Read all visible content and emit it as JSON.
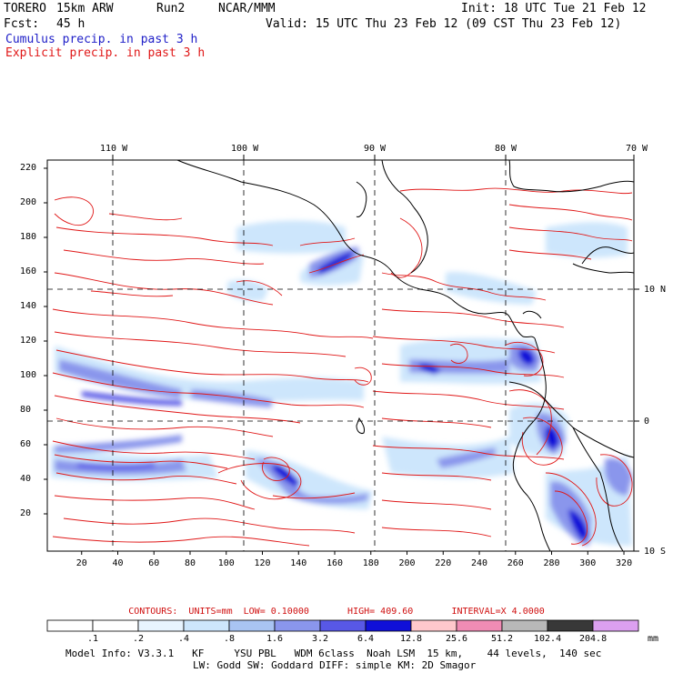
{
  "header": {
    "model": "TORERO",
    "resolution": "15km ARW",
    "run": "Run2",
    "org": "NCAR/MMM",
    "init": "Init: 18 UTC Tue 21 Feb 12",
    "fcst_label": "Fcst:",
    "fcst_value": "45 h",
    "valid": "Valid: 15 UTC Thu 23 Feb 12 (09 CST Thu 23 Feb 12)",
    "field1": "Cumulus precip. in past 3 h",
    "field2": "Explicit precip. in past 3 h"
  },
  "map": {
    "lon_labels": [
      "110 W",
      "100 W",
      "90 W",
      "80 W",
      "70 W"
    ],
    "lat_labels_right": [
      "10 N",
      "0",
      "10 S"
    ],
    "y_ticks": [
      "220",
      "200",
      "180",
      "160",
      "140",
      "120",
      "100",
      "80",
      "60",
      "40",
      "20"
    ],
    "x_ticks": [
      "20",
      "40",
      "60",
      "80",
      "100",
      "120",
      "140",
      "160",
      "180",
      "200",
      "220",
      "240",
      "260",
      "280",
      "300",
      "320"
    ]
  },
  "contours": {
    "label": "CONTOURS:",
    "units": "UNITS=mm",
    "low": "LOW= 0.10000",
    "high": "HIGH= 409.60",
    "interval": "INTERVAL=X  4.0000"
  },
  "colorbar": {
    "labels": [
      ".1",
      ".2",
      ".4",
      ".8",
      "1.6",
      "3.2",
      "6.4",
      "12.8",
      "25.6",
      "51.2",
      "102.4",
      "204.8"
    ],
    "units": "mm",
    "colors": [
      "#ffffff",
      "#ffffff",
      "#e8f4ff",
      "#cde6fc",
      "#a9c4f2",
      "#8a96ec",
      "#5858e6",
      "#1010d8",
      "#ffc8cc",
      "#f08cb4",
      "#b8b8b8",
      "#383838",
      "#dca0f0"
    ]
  },
  "footer": {
    "line1": "Model Info: V3.3.1   KF     YSU PBL   WDM 6class  Noah LSM  15 km,    44 levels,  140 sec",
    "line2": "LW: Godd SW: Goddard DIFF: simple KM: 2D Smagor"
  }
}
